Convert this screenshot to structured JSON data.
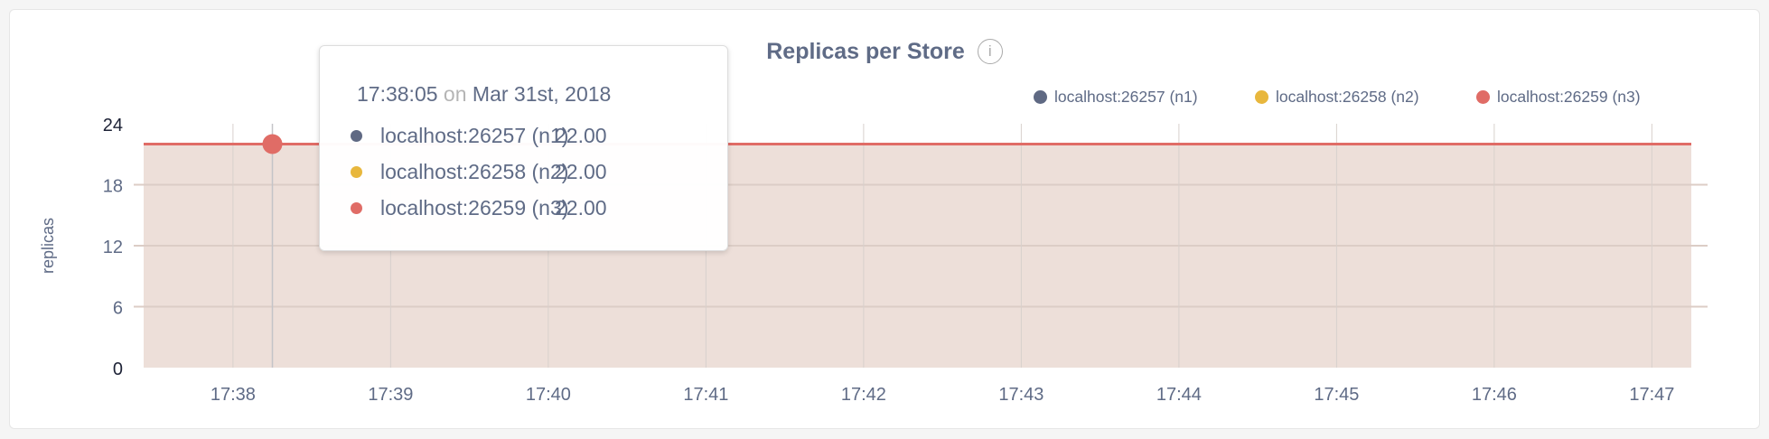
{
  "chart_data": {
    "type": "area",
    "title": "Replicas per Store",
    "ylabel": "replicas",
    "xlabel": "",
    "ylim": [
      0,
      24
    ],
    "yticks": [
      "0",
      "6",
      "12",
      "18",
      "24"
    ],
    "xlim": [
      "17:37:26",
      "17:47:15"
    ],
    "xticks": [
      "17:38",
      "17:39",
      "17:40",
      "17:41",
      "17:42",
      "17:43",
      "17:44",
      "17:45",
      "17:46",
      "17:47"
    ],
    "grid": true,
    "legend_position": "top-right",
    "series": [
      {
        "name": "localhost:26257 (n1)",
        "color": "#5f6983",
        "x": [
          "17:37:26",
          "17:47:15"
        ],
        "values": [
          22,
          22
        ]
      },
      {
        "name": "localhost:26258 (n2)",
        "color": "#e8b73d",
        "x": [
          "17:37:26",
          "17:47:15"
        ],
        "values": [
          22,
          22
        ]
      },
      {
        "name": "localhost:26259 (n3)",
        "color": "#e06c66",
        "x": [
          "17:37:26",
          "17:47:15"
        ],
        "values": [
          22,
          22
        ]
      }
    ],
    "fill_color": "#eddfd9"
  },
  "info_icon": "info-icon",
  "tooltip": {
    "time": "17:38:05",
    "on": "on",
    "date": "Mar 31st, 2018",
    "rows": [
      {
        "label": "localhost:26257 (n1)",
        "value": "22.00",
        "color": "#5f6983"
      },
      {
        "label": "localhost:26258 (n2)",
        "value": "22.00",
        "color": "#e8b73d"
      },
      {
        "label": "localhost:26259 (n3)",
        "value": "22.00",
        "color": "#e06c66"
      }
    ]
  }
}
